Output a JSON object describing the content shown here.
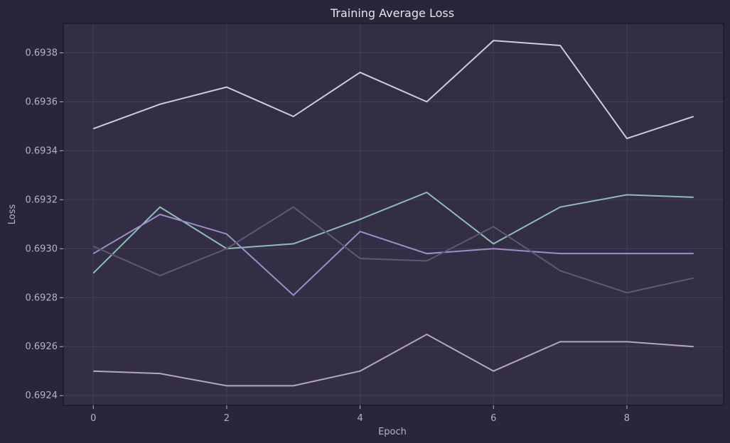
{
  "chart_data": {
    "type": "line",
    "title": "Training Average Loss",
    "xlabel": "Epoch",
    "ylabel": "Loss",
    "x": [
      0,
      1,
      2,
      3,
      4,
      5,
      6,
      7,
      8,
      9
    ],
    "xlim": [
      -0.45,
      9.45
    ],
    "ylim": [
      0.69236,
      0.69392
    ],
    "xticks": [
      0,
      2,
      4,
      6,
      8
    ],
    "yticks": [
      0.6924,
      0.6926,
      0.6928,
      0.693,
      0.6932,
      0.6934,
      0.6936,
      0.6938
    ],
    "ytick_labels": [
      "0.6924",
      "0.6926",
      "0.6928",
      "0.6930",
      "0.6932",
      "0.6934",
      "0.6936",
      "0.6938"
    ],
    "grid": true,
    "series": [
      {
        "color": "#d2cbd8",
        "values": [
          0.69349,
          0.69359,
          0.69366,
          0.69354,
          0.69372,
          0.6936,
          0.69385,
          0.69383,
          0.69345,
          0.69354
        ]
      },
      {
        "color": "#8fbcb8",
        "values": [
          0.6929,
          0.69317,
          0.693,
          0.69302,
          0.69312,
          0.69323,
          0.69302,
          0.69317,
          0.69322,
          0.69321
        ]
      },
      {
        "color": "#9a90c8",
        "values": [
          0.69298,
          0.69314,
          0.69306,
          0.69281,
          0.69307,
          0.69298,
          0.693,
          0.69298,
          0.69298,
          0.69298
        ]
      },
      {
        "color": "#5f5873",
        "values": [
          0.69301,
          0.69289,
          0.693,
          0.69317,
          0.69296,
          0.69295,
          0.69309,
          0.69291,
          0.69282,
          0.69288
        ]
      },
      {
        "color": "#b1a7c2",
        "values": [
          0.6925,
          0.69249,
          0.69244,
          0.69244,
          0.6925,
          0.69265,
          0.6925,
          0.69262,
          0.69262,
          0.6926
        ]
      }
    ]
  }
}
